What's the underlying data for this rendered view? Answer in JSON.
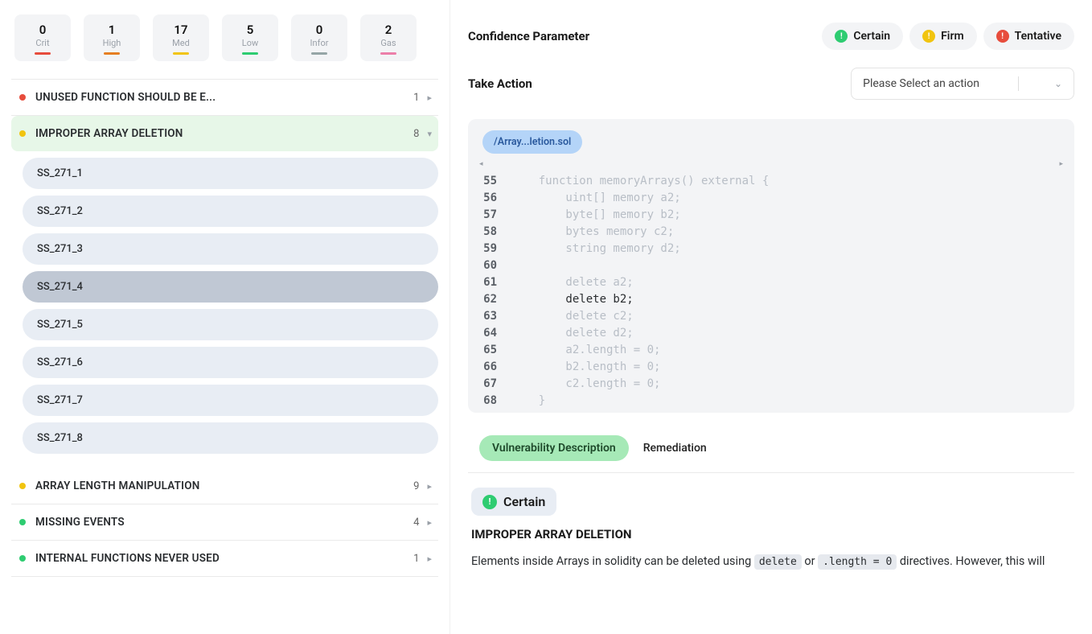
{
  "severities": [
    {
      "count": "0",
      "label": "Crit",
      "bar_color": "#e74c3c"
    },
    {
      "count": "1",
      "label": "High",
      "bar_color": "#e67e22"
    },
    {
      "count": "17",
      "label": "Med",
      "bar_color": "#f1c40f"
    },
    {
      "count": "5",
      "label": "Low",
      "bar_color": "#2ecc71"
    },
    {
      "count": "0",
      "label": "Infor",
      "bar_color": "#95a5a6"
    },
    {
      "count": "2",
      "label": "Gas",
      "bar_color": "#ec7fa9"
    }
  ],
  "issues": [
    {
      "title": "UNUSED FUNCTION SHOULD BE E...",
      "count": "1",
      "dot": "#e74c3c",
      "chev": "▸",
      "expanded": false
    },
    {
      "title": "IMPROPER ARRAY DELETION",
      "count": "8",
      "dot": "#f1c40f",
      "chev": "▾",
      "expanded": true,
      "subs": [
        "SS_271_1",
        "SS_271_2",
        "SS_271_3",
        "SS_271_4",
        "SS_271_5",
        "SS_271_6",
        "SS_271_7",
        "SS_271_8"
      ],
      "active_sub": 3
    },
    {
      "title": "ARRAY LENGTH MANIPULATION",
      "count": "9",
      "dot": "#f1c40f",
      "chev": "▸",
      "expanded": false
    },
    {
      "title": "MISSING EVENTS",
      "count": "4",
      "dot": "#2ecc71",
      "chev": "▸",
      "expanded": false
    },
    {
      "title": "INTERNAL FUNCTIONS NEVER USED",
      "count": "1",
      "dot": "#2ecc71",
      "chev": "▸",
      "expanded": false
    }
  ],
  "confidence": {
    "title": "Confidence Parameter",
    "badges": [
      {
        "label": "Certain",
        "icon": "!",
        "color": "#2ecc71"
      },
      {
        "label": "Firm",
        "icon": "!",
        "color": "#f1c40f"
      },
      {
        "label": "Tentative",
        "icon": "!",
        "color": "#e74c3c"
      }
    ]
  },
  "action": {
    "title": "Take Action",
    "placeholder": "Please Select an action"
  },
  "file_tab": "/Array...letion.sol",
  "code": [
    {
      "n": "55",
      "t": "    function memoryArrays() external {"
    },
    {
      "n": "56",
      "t": "        uint[] memory a2;"
    },
    {
      "n": "57",
      "t": "        byte[] memory b2;"
    },
    {
      "n": "58",
      "t": "        bytes memory c2;"
    },
    {
      "n": "59",
      "t": "        string memory d2;"
    },
    {
      "n": "60",
      "t": ""
    },
    {
      "n": "61",
      "t": "        delete a2;"
    },
    {
      "n": "62",
      "t": "        delete b2;",
      "hl": true
    },
    {
      "n": "63",
      "t": "        delete c2;"
    },
    {
      "n": "64",
      "t": "        delete d2;"
    },
    {
      "n": "65",
      "t": "        a2.length = 0;"
    },
    {
      "n": "66",
      "t": "        b2.length = 0;"
    },
    {
      "n": "67",
      "t": "        c2.length = 0;"
    },
    {
      "n": "68",
      "t": "    }"
    }
  ],
  "tabs": {
    "active": "Vulnerability Description",
    "other": "Remediation"
  },
  "cert_small": {
    "label": "Certain",
    "color": "#2ecc71"
  },
  "desc": {
    "heading": "IMPROPER ARRAY DELETION",
    "pre": "Elements inside Arrays in solidity can be deleted using ",
    "code1": "delete",
    "mid": " or ",
    "code2": ".length = 0",
    "post": " directives. However, this will"
  }
}
